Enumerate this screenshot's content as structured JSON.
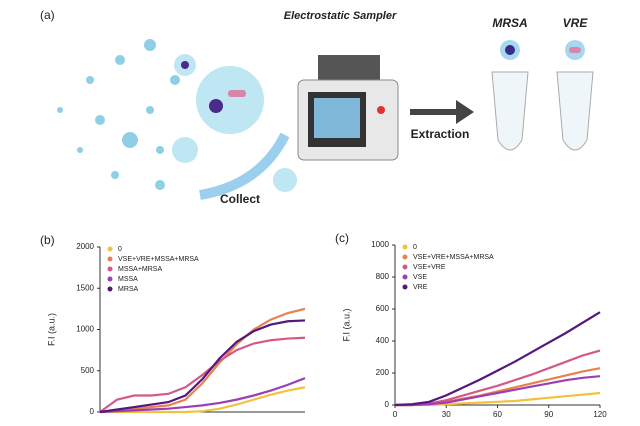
{
  "diagram": {
    "panel_label": "(a)",
    "sampler_label": "Electrostatic Sampler",
    "collect_label": "Collect",
    "extraction_label": "Extraction",
    "tubes": [
      {
        "label": "MRSA"
      },
      {
        "label": "VRE"
      }
    ]
  },
  "chart_data": [
    {
      "type": "line",
      "panel_label": "(b)",
      "y_label": "F.I (a.u.)",
      "x": [
        0,
        10,
        20,
        30,
        40,
        50,
        60,
        70,
        80,
        90,
        100,
        110,
        120
      ],
      "xlim": [
        0,
        120
      ],
      "ylim": [
        0,
        2000
      ],
      "yticks": [
        0,
        500,
        1000,
        1500,
        2000
      ],
      "series": [
        {
          "name": "0",
          "color": "#f2c23d",
          "values": [
            0,
            0,
            0,
            0,
            0,
            0,
            10,
            40,
            90,
            150,
            210,
            260,
            300
          ]
        },
        {
          "name": "VSE+VRE+MSSA+MRSA",
          "color": "#e8814c",
          "values": [
            0,
            20,
            40,
            60,
            80,
            150,
            350,
            600,
            820,
            1000,
            1120,
            1200,
            1250
          ]
        },
        {
          "name": "MSSA+MRSA",
          "color": "#d4588a",
          "values": [
            0,
            150,
            200,
            200,
            220,
            300,
            450,
            620,
            750,
            830,
            870,
            890,
            900
          ]
        },
        {
          "name": "MSSA",
          "color": "#9b3fb8",
          "values": [
            0,
            10,
            20,
            30,
            40,
            60,
            80,
            110,
            150,
            200,
            260,
            330,
            410
          ]
        },
        {
          "name": "MRSA",
          "color": "#55177c",
          "values": [
            0,
            30,
            60,
            90,
            120,
            200,
            400,
            650,
            850,
            980,
            1060,
            1100,
            1110
          ]
        }
      ]
    },
    {
      "type": "line",
      "panel_label": "(c)",
      "y_label": "F.I (a.u.)",
      "x": [
        0,
        10,
        20,
        30,
        40,
        50,
        60,
        70,
        80,
        90,
        100,
        110,
        120
      ],
      "xlim": [
        0,
        120
      ],
      "xticks": [
        0,
        30,
        60,
        90,
        120
      ],
      "ylim": [
        0,
        1000
      ],
      "yticks": [
        0,
        200,
        400,
        600,
        800,
        1000
      ],
      "series": [
        {
          "name": "0",
          "color": "#f2c23d",
          "values": [
            0,
            0,
            0,
            5,
            10,
            15,
            20,
            25,
            35,
            45,
            55,
            65,
            75
          ]
        },
        {
          "name": "VSE+VRE+MSSA+MRSA",
          "color": "#e8814c",
          "values": [
            0,
            0,
            5,
            20,
            40,
            60,
            85,
            110,
            135,
            160,
            185,
            210,
            230
          ]
        },
        {
          "name": "VSE+VRE",
          "color": "#d4588a",
          "values": [
            0,
            0,
            10,
            30,
            60,
            90,
            120,
            155,
            190,
            230,
            270,
            310,
            340
          ]
        },
        {
          "name": "VSE",
          "color": "#9b3fb8",
          "values": [
            0,
            0,
            5,
            15,
            35,
            55,
            75,
            95,
            115,
            135,
            155,
            170,
            180
          ]
        },
        {
          "name": "VRE",
          "color": "#55177c",
          "values": [
            0,
            5,
            20,
            60,
            110,
            160,
            215,
            270,
            330,
            390,
            450,
            515,
            580
          ]
        }
      ]
    }
  ]
}
